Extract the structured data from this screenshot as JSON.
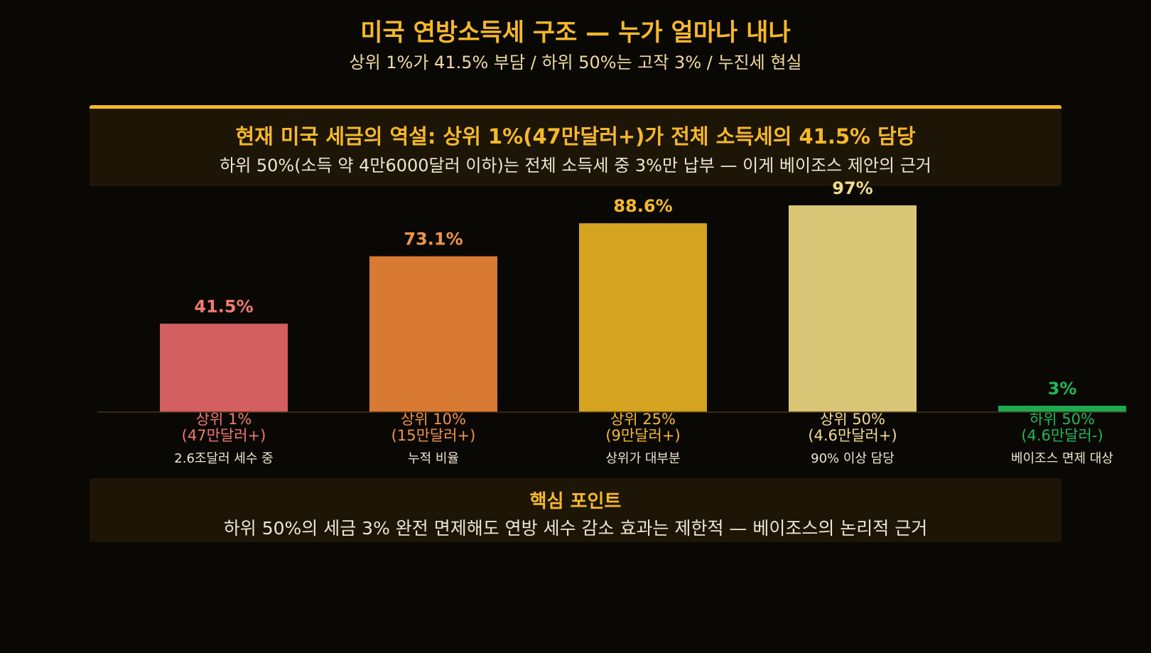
{
  "title": "미국 연방소득세 구조 — 누가 얼마나 내나",
  "subtitle": "상위 1%가 41.5% 부담 / 하위 50%는 고작 3% / 누진세 현실",
  "banner": {
    "title": "현재 미국 세금의 역설: 상위 1%(47만달러+)가 전체 소득세의 41.5% 담당",
    "text": "하위 50%(소득 약 4만6000달러 이하)는 전체 소득세 중 3%만 납부 — 이게 베이조스 제안의 근거"
  },
  "chart_data": {
    "type": "bar",
    "title": "",
    "xlabel": "",
    "ylabel": "",
    "ylim": [
      0,
      100
    ],
    "categories": [
      {
        "line1": "상위 1%",
        "line2": "(47만달러+)",
        "note": "2.6조달러 세수 중"
      },
      {
        "line1": "상위 10%",
        "line2": "(15만달러+)",
        "note": "누적 비율"
      },
      {
        "line1": "상위 25%",
        "line2": "(9만달러+)",
        "note": "상위가 대부분"
      },
      {
        "line1": "상위 50%",
        "line2": "(4.6만달러+)",
        "note": "90% 이상 담당"
      },
      {
        "line1": "하위 50%",
        "line2": "(4.6만달러-)",
        "note": "베이조스 면제 대상"
      }
    ],
    "values": [
      41.5,
      73.1,
      88.6,
      97,
      3
    ],
    "value_labels": [
      "41.5%",
      "73.1%",
      "88.6%",
      "97%",
      "3%"
    ],
    "colors": [
      "#d45f60",
      "#d97a32",
      "#d4a420",
      "#d8c676",
      "#1daa4f"
    ],
    "label_colors": [
      "#ef7a72",
      "#f2934a",
      "#f5b830",
      "#f3dc90",
      "#22b858"
    ]
  },
  "keypoint": {
    "title": "핵심 포인트",
    "text": "하위 50%의 세금 3% 완전 면제해도 연방 세수 감소 효과는 제한적 — 베이조스의 논리적 근거"
  }
}
